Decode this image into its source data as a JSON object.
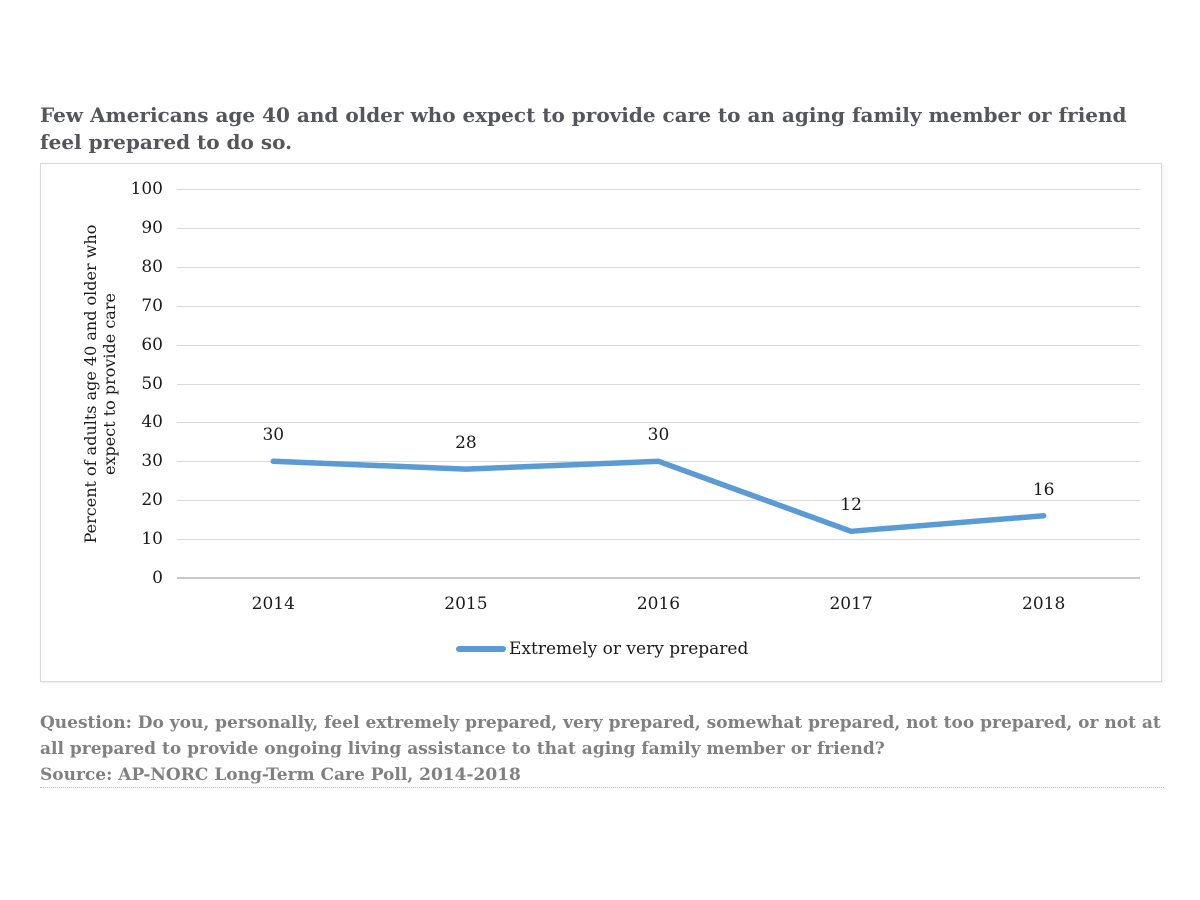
{
  "page": {
    "title": "Few Americans age 40 and older who expect to provide care to an aging family member or friend feel prepared to do so.",
    "footer": {
      "question": "Question: Do you, personally, feel extremely prepared, very prepared, somewhat prepared, not too prepared, or not at all prepared to provide ongoing living assistance to that aging family member or friend?",
      "source": "Source: AP-NORC Long-Term Care Poll, 2014-2018"
    }
  },
  "chart_data": {
    "type": "line",
    "title": "Few Americans age 40 and older who expect to provide care to an aging family member or friend feel prepared to do so.",
    "categories": [
      "2014",
      "2015",
      "2016",
      "2017",
      "2018"
    ],
    "series": [
      {
        "name": "Extremely or very prepared",
        "values": [
          30,
          28,
          30,
          12,
          16
        ],
        "color": "#5B9BD5"
      }
    ],
    "xlabel": "",
    "ylabel": "Percent of adults age 40 and older who expect to provide care",
    "ylabel_lines": [
      "Percent of adults age 40 and older who",
      "expect to provide care"
    ],
    "ylim": [
      0,
      100
    ],
    "yticks": [
      0,
      10,
      20,
      30,
      40,
      50,
      60,
      70,
      80,
      90,
      100
    ],
    "grid": true,
    "data_labels": true,
    "legend_position": "bottom",
    "colors": {
      "line": "#5B9BD5",
      "title_text": "#55565A",
      "footer_text": "#808080",
      "gridline": "#D9D9D9",
      "zero_line": "#C8C8C8",
      "tick_text": "#1A1A1A",
      "frame_border": "#D9D9D9"
    }
  }
}
